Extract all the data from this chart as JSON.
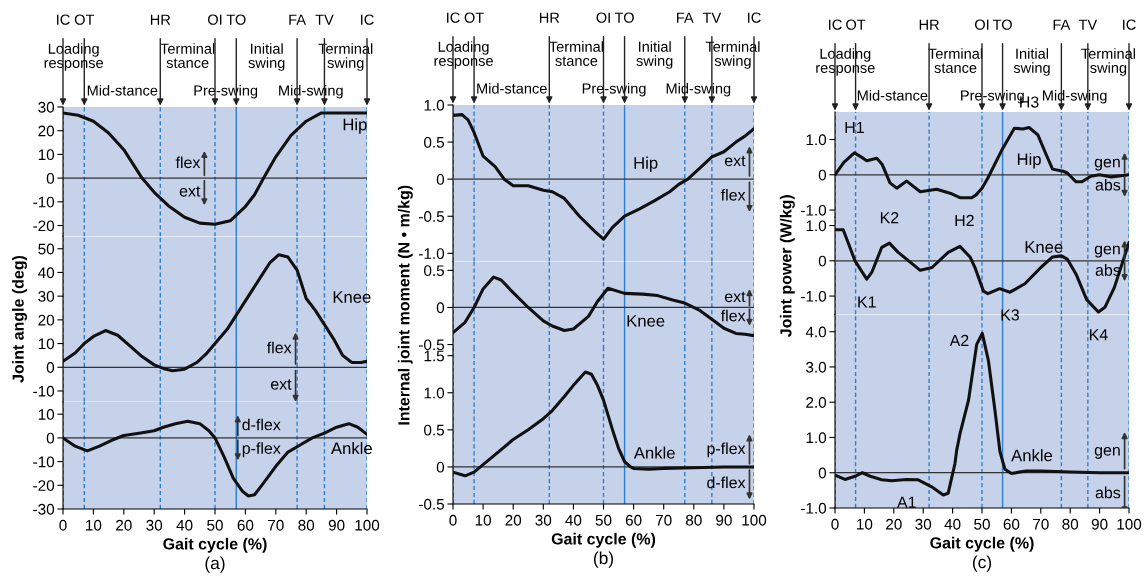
{
  "chart_data": [
    {
      "type": "line",
      "xlim": [
        0,
        100
      ],
      "ylim": [
        -24.6,
        30
      ],
      "yticks": [
        -20,
        -10,
        0,
        10,
        20,
        30
      ],
      "tick_labels": "y",
      "series": [
        {
          "name": "Hip",
          "color": "#111111",
          "x": [
            0,
            5,
            10,
            15,
            20,
            26,
            30,
            35,
            40,
            45,
            50,
            55,
            60,
            63,
            66,
            70,
            75,
            80,
            85,
            90,
            100
          ],
          "values": [
            27.5,
            26.5,
            24,
            19,
            12,
            0,
            -6,
            -12,
            -16.5,
            -19,
            -19.5,
            -18,
            -12,
            -7,
            0,
            9,
            18,
            24,
            27.5,
            27.5,
            27.5
          ]
        }
      ],
      "annotations": [
        {
          "text": "flex",
          "x": 46.5,
          "y": 0
        },
        {
          "text": "ext",
          "x": 46.5,
          "y": 0
        }
      ],
      "ref_lines": [
        {
          "axis": "x",
          "value": 0,
          "label": "IC",
          "color": "#2b7fd0",
          "line_style": "dashed"
        },
        {
          "axis": "x",
          "value": 7,
          "label": "OT",
          "color": "#2b7fd0",
          "line_style": "dashed"
        },
        {
          "axis": "x",
          "value": 32,
          "label": "HR",
          "color": "#2b7fd0",
          "line_style": "dashed"
        },
        {
          "axis": "x",
          "value": 50,
          "label": "OI",
          "color": "#2b7fd0",
          "line_style": "dashed"
        },
        {
          "axis": "x",
          "value": 57,
          "label": "TO",
          "color": "#2b7fd0",
          "line_style": "solid"
        },
        {
          "axis": "x",
          "value": 77,
          "label": "FA",
          "color": "#2b7fd0",
          "line_style": "dashed"
        },
        {
          "axis": "x",
          "value": 86,
          "label": "TV",
          "color": "#2b7fd0",
          "line_style": "dashed"
        },
        {
          "axis": "x",
          "value": 100,
          "label": "IC",
          "color": "#2b7fd0",
          "line_style": "dashed"
        },
        {
          "axis": "y",
          "value": 0,
          "color": "#333333",
          "line_style": "solid"
        }
      ],
      "bands": [
        {
          "axis": "x",
          "from": 0,
          "to": 7,
          "label": "Loading\nresponse",
          "color": "#c6d1ea"
        },
        {
          "axis": "x",
          "from": 7,
          "to": 32,
          "label": "Mid-stance",
          "color": "#c6d1ea"
        },
        {
          "axis": "x",
          "from": 32,
          "to": 50,
          "label": "Terminal\nstance",
          "color": "#c6d1ea"
        },
        {
          "axis": "x",
          "from": 50,
          "to": 57,
          "label": "Pre-swing",
          "color": "#c6d1ea"
        },
        {
          "axis": "x",
          "from": 57,
          "to": 77,
          "label": "Initial\nswing",
          "color": "#c6d1ea"
        },
        {
          "axis": "x",
          "from": 77,
          "to": 86,
          "label": "Mid-swing",
          "color": "#c6d1ea"
        },
        {
          "axis": "x",
          "from": 86,
          "to": 100,
          "label": "Terminal\nswing",
          "color": "#c6d1ea"
        }
      ]
    },
    {
      "type": "line",
      "xlim": [
        0,
        100
      ],
      "ylim": [
        -14.5,
        55.2
      ],
      "yticks": [
        -10,
        0,
        10,
        20,
        30,
        40,
        50
      ],
      "tick_labels": "y",
      "ylabel": "Joint angle (deg)",
      "series": [
        {
          "name": "Knee",
          "color": "#111111",
          "x": [
            0,
            4,
            7,
            10,
            14,
            18,
            22,
            26,
            30,
            33,
            36,
            40,
            44,
            47,
            50,
            54,
            57,
            61,
            65,
            68,
            71,
            74,
            77,
            80,
            83,
            86,
            89,
            92,
            95,
            98,
            100
          ],
          "values": [
            2.5,
            6,
            10,
            13,
            15.5,
            13.5,
            9,
            4.5,
            1,
            -0.5,
            -1.5,
            -0.8,
            2,
            5.5,
            10,
            16,
            22,
            30,
            38,
            44,
            47.5,
            46.5,
            41,
            29,
            24,
            18,
            12,
            5,
            2,
            2,
            2.5
          ]
        }
      ],
      "annotations": [
        {
          "text": "flex",
          "x": 76.5,
          "y": 0
        },
        {
          "text": "ext",
          "x": 76.5,
          "y": 0
        }
      ],
      "ref_lines": [
        {
          "axis": "x",
          "value": 0,
          "color": "#2b7fd0",
          "line_style": "dashed"
        },
        {
          "axis": "x",
          "value": 7,
          "color": "#2b7fd0",
          "line_style": "dashed"
        },
        {
          "axis": "x",
          "value": 32,
          "color": "#2b7fd0",
          "line_style": "dashed"
        },
        {
          "axis": "x",
          "value": 50,
          "color": "#2b7fd0",
          "line_style": "dashed"
        },
        {
          "axis": "x",
          "value": 57,
          "color": "#2b7fd0",
          "line_style": "solid"
        },
        {
          "axis": "x",
          "value": 77,
          "color": "#2b7fd0",
          "line_style": "dashed"
        },
        {
          "axis": "x",
          "value": 86,
          "color": "#2b7fd0",
          "line_style": "dashed"
        },
        {
          "axis": "x",
          "value": 100,
          "color": "#2b7fd0",
          "line_style": "dashed"
        },
        {
          "axis": "y",
          "value": 0,
          "color": "#333333",
          "line_style": "solid"
        }
      ],
      "bands": [
        {
          "axis": "x",
          "from": 0,
          "to": 100,
          "color": "#c6d1ea"
        }
      ]
    },
    {
      "type": "line",
      "xlim": [
        0,
        100
      ],
      "ylim": [
        -30,
        15.3
      ],
      "yticks": [
        -30,
        -20,
        -10,
        0,
        10
      ],
      "xticks": [
        0,
        10,
        20,
        30,
        40,
        50,
        60,
        70,
        80,
        90,
        100
      ],
      "xlabel": "Gait cycle (%)",
      "series": [
        {
          "name": "Ankle",
          "color": "#111111",
          "x": [
            0,
            4,
            8,
            12,
            16,
            20,
            25,
            30,
            33,
            37,
            41,
            45,
            48,
            50,
            53,
            56,
            59,
            61,
            63,
            66,
            70,
            74,
            78,
            82,
            86,
            90,
            94,
            97,
            100
          ],
          "values": [
            0,
            -3.5,
            -5.5,
            -3.5,
            -1,
            1,
            2,
            3,
            4.5,
            6,
            7,
            6,
            3,
            0,
            -8,
            -17,
            -22.5,
            -24.5,
            -24,
            -19,
            -12,
            -6,
            -3,
            0,
            2,
            4.5,
            6,
            4.5,
            1.5
          ]
        }
      ],
      "annotations": [
        {
          "text": "d-flex",
          "x": 57.5,
          "y": 0
        },
        {
          "text": "p-flex",
          "x": 57.5,
          "y": 0
        },
        "(a)"
      ],
      "ref_lines": [
        {
          "axis": "x",
          "value": 0,
          "color": "#2b7fd0",
          "line_style": "dashed"
        },
        {
          "axis": "x",
          "value": 7,
          "color": "#2b7fd0",
          "line_style": "dashed"
        },
        {
          "axis": "x",
          "value": 32,
          "color": "#2b7fd0",
          "line_style": "dashed"
        },
        {
          "axis": "x",
          "value": 50,
          "color": "#2b7fd0",
          "line_style": "dashed"
        },
        {
          "axis": "x",
          "value": 57,
          "color": "#2b7fd0",
          "line_style": "solid"
        },
        {
          "axis": "x",
          "value": 77,
          "color": "#2b7fd0",
          "line_style": "dashed"
        },
        {
          "axis": "x",
          "value": 86,
          "color": "#2b7fd0",
          "line_style": "dashed"
        },
        {
          "axis": "x",
          "value": 100,
          "color": "#2b7fd0",
          "line_style": "dashed"
        },
        {
          "axis": "y",
          "value": 0,
          "color": "#333333",
          "line_style": "solid"
        }
      ],
      "bands": [
        {
          "axis": "x",
          "from": 0,
          "to": 100,
          "color": "#c6d1ea"
        }
      ]
    },
    {
      "type": "line",
      "xlim": [
        0,
        100
      ],
      "ylim": [
        -1.11,
        1.0
      ],
      "yticks": [
        {
          "value": -1,
          "label": "-1.0"
        },
        -0.5,
        0,
        0.5,
        {
          "value": 1,
          "label": "1.0"
        }
      ],
      "tick_labels": "y",
      "series": [
        {
          "name": "Hip",
          "color": "#111111",
          "x": [
            0,
            3,
            5,
            7,
            10,
            14,
            17,
            20,
            25,
            30,
            33,
            37,
            42,
            47,
            50,
            53,
            57,
            62,
            67,
            72,
            75,
            78,
            82,
            86,
            90,
            94,
            97,
            100
          ],
          "values": [
            0.86,
            0.87,
            0.8,
            0.63,
            0.31,
            0.17,
            0,
            -0.09,
            -0.09,
            -0.15,
            -0.17,
            -0.26,
            -0.5,
            -0.7,
            -0.81,
            -0.65,
            -0.5,
            -0.4,
            -0.29,
            -0.17,
            -0.07,
            0,
            0.15,
            0.3,
            0.37,
            0.5,
            0.58,
            0.68
          ]
        }
      ],
      "annotations": [
        {
          "text": "ext",
          "x": 98.5,
          "y": 0
        },
        {
          "text": "flex",
          "x": 98.5,
          "y": 0
        }
      ],
      "ref_lines": [
        {
          "axis": "x",
          "value": 0,
          "label": "IC",
          "color": "#2b7fd0",
          "line_style": "dashed"
        },
        {
          "axis": "x",
          "value": 7,
          "label": "OT",
          "color": "#2b7fd0",
          "line_style": "dashed"
        },
        {
          "axis": "x",
          "value": 32,
          "label": "HR",
          "color": "#2b7fd0",
          "line_style": "dashed"
        },
        {
          "axis": "x",
          "value": 50,
          "label": "OI",
          "color": "#2b7fd0",
          "line_style": "dashed"
        },
        {
          "axis": "x",
          "value": 57,
          "label": "TO",
          "color": "#2b7fd0",
          "line_style": "solid"
        },
        {
          "axis": "x",
          "value": 77,
          "label": "FA",
          "color": "#2b7fd0",
          "line_style": "dashed"
        },
        {
          "axis": "x",
          "value": 86,
          "label": "TV",
          "color": "#2b7fd0",
          "line_style": "dashed"
        },
        {
          "axis": "x",
          "value": 100,
          "label": "IC",
          "color": "#2b7fd0",
          "line_style": "dashed"
        },
        {
          "axis": "y",
          "value": 0,
          "color": "#333333",
          "line_style": "solid"
        }
      ],
      "bands": [
        {
          "axis": "x",
          "from": 0,
          "to": 7,
          "label": "Loading\nresponse",
          "color": "#c6d1ea"
        },
        {
          "axis": "x",
          "from": 7,
          "to": 32,
          "label": "Mid-stance",
          "color": "#c6d1ea"
        },
        {
          "axis": "x",
          "from": 32,
          "to": 50,
          "label": "Terminal\nstance",
          "color": "#c6d1ea"
        },
        {
          "axis": "x",
          "from": 50,
          "to": 57,
          "label": "Pre-swing",
          "color": "#c6d1ea"
        },
        {
          "axis": "x",
          "from": 57,
          "to": 77,
          "label": "Initial\nswing",
          "color": "#c6d1ea"
        },
        {
          "axis": "x",
          "from": 77,
          "to": 86,
          "label": "Mid-swing",
          "color": "#c6d1ea"
        },
        {
          "axis": "x",
          "from": 86,
          "to": 100,
          "label": "Terminal\nswing",
          "color": "#c6d1ea"
        }
      ]
    },
    {
      "type": "line",
      "xlim": [
        0,
        100
      ],
      "ylim": [
        -0.56,
        0.62
      ],
      "yticks": [
        -0.5,
        0,
        0.5
      ],
      "tick_labels": "y",
      "ylabel": "Internal joint moment (N • m/kg)",
      "series": [
        {
          "name": "Knee",
          "color": "#111111",
          "x": [
            0,
            4,
            7,
            10,
            13.5,
            16,
            20,
            25,
            30,
            33,
            37,
            40,
            45,
            48,
            51.5,
            57,
            63,
            68,
            73,
            77,
            82,
            86,
            90,
            94,
            97,
            100
          ],
          "values": [
            -0.34,
            -0.2,
            0,
            0.25,
            0.41,
            0.37,
            0.2,
            0,
            -0.18,
            -0.25,
            -0.31,
            -0.29,
            -0.12,
            0.08,
            0.26,
            0.19,
            0.18,
            0.16,
            0.1,
            0.06,
            -0.04,
            -0.16,
            -0.28,
            -0.35,
            -0.36,
            -0.38
          ]
        }
      ],
      "annotations": [
        {
          "text": "ext",
          "x": 98.5,
          "y": 0
        },
        {
          "text": "flex",
          "x": 98.5,
          "y": 0
        }
      ],
      "ref_lines": [
        {
          "axis": "x",
          "value": 0,
          "color": "#2b7fd0",
          "line_style": "dashed"
        },
        {
          "axis": "x",
          "value": 7,
          "color": "#2b7fd0",
          "line_style": "dashed"
        },
        {
          "axis": "x",
          "value": 32,
          "color": "#2b7fd0",
          "line_style": "dashed"
        },
        {
          "axis": "x",
          "value": 50,
          "color": "#2b7fd0",
          "line_style": "dashed"
        },
        {
          "axis": "x",
          "value": 57,
          "color": "#2b7fd0",
          "line_style": "solid"
        },
        {
          "axis": "x",
          "value": 77,
          "color": "#2b7fd0",
          "line_style": "dashed"
        },
        {
          "axis": "x",
          "value": 86,
          "color": "#2b7fd0",
          "line_style": "dashed"
        },
        {
          "axis": "x",
          "value": 100,
          "color": "#2b7fd0",
          "line_style": "dashed"
        },
        {
          "axis": "y",
          "value": 0,
          "color": "#333333",
          "line_style": "solid"
        }
      ],
      "bands": [
        {
          "axis": "x",
          "from": 0,
          "to": 100,
          "color": "#c6d1ea"
        }
      ]
    },
    {
      "type": "line",
      "xlim": [
        0,
        100
      ],
      "ylim": [
        -0.5,
        1.59
      ],
      "yticks": [
        -0.5,
        0,
        0.5,
        {
          "value": 1,
          "label": "1.0"
        },
        1.5
      ],
      "xticks": [
        0,
        10,
        20,
        30,
        40,
        50,
        60,
        70,
        80,
        90,
        100
      ],
      "xlabel": "Gait cycle (%)",
      "series": [
        {
          "name": "Ankle",
          "color": "#111111",
          "x": [
            0,
            4,
            7,
            10,
            15,
            20,
            25,
            30,
            33,
            37,
            40,
            44,
            46,
            48,
            50,
            53,
            55,
            57,
            59,
            60,
            65,
            70,
            80,
            90,
            100
          ],
          "values": [
            -0.07,
            -0.12,
            -0.07,
            0.03,
            0.2,
            0.37,
            0.5,
            0.65,
            0.76,
            0.95,
            1.1,
            1.28,
            1.25,
            1.1,
            0.9,
            0.5,
            0.25,
            0.07,
            0,
            -0.02,
            -0.03,
            -0.02,
            -0.01,
            0,
            0
          ]
        }
      ],
      "annotations": [
        {
          "text": "p-flex",
          "x": 98.5,
          "y": 0
        },
        {
          "text": "d-flex",
          "x": 98.5,
          "y": 0
        },
        "(b)"
      ],
      "ref_lines": [
        {
          "axis": "x",
          "value": 0,
          "color": "#2b7fd0",
          "line_style": "dashed"
        },
        {
          "axis": "x",
          "value": 7,
          "color": "#2b7fd0",
          "line_style": "dashed"
        },
        {
          "axis": "x",
          "value": 32,
          "color": "#2b7fd0",
          "line_style": "dashed"
        },
        {
          "axis": "x",
          "value": 50,
          "color": "#2b7fd0",
          "line_style": "dashed"
        },
        {
          "axis": "x",
          "value": 57,
          "color": "#2b7fd0",
          "line_style": "solid"
        },
        {
          "axis": "x",
          "value": 77,
          "color": "#2b7fd0",
          "line_style": "dashed"
        },
        {
          "axis": "x",
          "value": 86,
          "color": "#2b7fd0",
          "line_style": "dashed"
        },
        {
          "axis": "x",
          "value": 100,
          "color": "#2b7fd0",
          "line_style": "dashed"
        },
        {
          "axis": "y",
          "value": 0,
          "color": "#333333",
          "line_style": "solid"
        }
      ],
      "bands": [
        {
          "axis": "x",
          "from": 0,
          "to": 100,
          "color": "#c6d1ea"
        }
      ]
    },
    {
      "type": "line",
      "xlim": [
        0,
        100
      ],
      "ylim": [
        -1.2,
        1.78
      ],
      "yticks": [
        {
          "value": -1,
          "label": "-1.0"
        },
        0,
        {
          "value": 1,
          "label": "1.0"
        }
      ],
      "tick_labels": "y",
      "series": [
        {
          "name": "Hip",
          "color": "#111111",
          "x": [
            0,
            3,
            6.6,
            9,
            10.8,
            14.2,
            16,
            18.7,
            21,
            24.4,
            29,
            34.6,
            39.7,
            42.5,
            46.5,
            48,
            50,
            52,
            57,
            61,
            64,
            66,
            69,
            72,
            74,
            77.6,
            79,
            82,
            84,
            87,
            90,
            94,
            100
          ],
          "values": [
            0,
            0.35,
            0.62,
            0.5,
            0.4,
            0.47,
            0.3,
            -0.23,
            -0.38,
            -0.18,
            -0.48,
            -0.41,
            -0.54,
            -0.65,
            -0.65,
            -0.57,
            -0.38,
            -0.09,
            0.74,
            1.32,
            1.3,
            1.34,
            1.13,
            0.54,
            0.16,
            0.1,
            0.05,
            -0.2,
            -0.2,
            -0.04,
            0,
            -0.06,
            0
          ]
        }
      ],
      "annotations": [
        {
          "text": "gen",
          "x": 98.5,
          "y": 0
        },
        {
          "text": "abs",
          "x": 98.5,
          "y": 0
        },
        {
          "text": "H1",
          "x": 6.6,
          "y": 0.62
        },
        {
          "text": "H2",
          "x": 44,
          "y": -0.65
        },
        {
          "text": "H3",
          "x": 66,
          "y": 1.34
        }
      ],
      "ref_lines": [
        {
          "axis": "x",
          "value": 0,
          "label": "IC",
          "color": "#2b7fd0",
          "line_style": "dashed"
        },
        {
          "axis": "x",
          "value": 7,
          "label": "OT",
          "color": "#2b7fd0",
          "line_style": "dashed"
        },
        {
          "axis": "x",
          "value": 32,
          "label": "HR",
          "color": "#2b7fd0",
          "line_style": "dashed"
        },
        {
          "axis": "x",
          "value": 50,
          "label": "OI",
          "color": "#2b7fd0",
          "line_style": "dashed"
        },
        {
          "axis": "x",
          "value": 57,
          "label": "TO",
          "color": "#2b7fd0",
          "line_style": "solid"
        },
        {
          "axis": "x",
          "value": 77,
          "label": "FA",
          "color": "#2b7fd0",
          "line_style": "dashed"
        },
        {
          "axis": "x",
          "value": 86,
          "label": "TV",
          "color": "#2b7fd0",
          "line_style": "dashed"
        },
        {
          "axis": "x",
          "value": 100,
          "label": "IC",
          "color": "#2b7fd0",
          "line_style": "dashed"
        },
        {
          "axis": "y",
          "value": 0,
          "color": "#333333",
          "line_style": "solid"
        }
      ],
      "bands": [
        {
          "axis": "x",
          "from": 0,
          "to": 7,
          "label": "Loading\nresponse",
          "color": "#c6d1ea"
        },
        {
          "axis": "x",
          "from": 7,
          "to": 32,
          "label": "Mid-stance",
          "color": "#c6d1ea"
        },
        {
          "axis": "x",
          "from": 32,
          "to": 50,
          "label": "Terminal\nstance",
          "color": "#c6d1ea"
        },
        {
          "axis": "x",
          "from": 50,
          "to": 57,
          "label": "Pre-swing",
          "color": "#c6d1ea"
        },
        {
          "axis": "x",
          "from": 57,
          "to": 77,
          "label": "Initial\nswing",
          "color": "#c6d1ea"
        },
        {
          "axis": "x",
          "from": 77,
          "to": 86,
          "label": "Mid-swing",
          "color": "#c6d1ea"
        },
        {
          "axis": "x",
          "from": 86,
          "to": 100,
          "label": "Terminal\nswing",
          "color": "#c6d1ea"
        }
      ]
    },
    {
      "type": "line",
      "xlim": [
        0,
        100
      ],
      "ylim": [
        -1.52,
        1.24
      ],
      "yticks": [
        {
          "value": -1,
          "label": "-1.0"
        },
        0,
        {
          "value": 1,
          "label": "1.0"
        }
      ],
      "tick_labels": "y",
      "ylabel": "Joint power (W/kg)",
      "series": [
        {
          "name": "Knee",
          "color": "#111111",
          "x": [
            0,
            2.8,
            6.8,
            10.8,
            12.5,
            15.9,
            18.5,
            21.5,
            29,
            33,
            38.5,
            42.5,
            46,
            47.6,
            50.5,
            52,
            56,
            59.5,
            64.6,
            70,
            74,
            77,
            79,
            82,
            85.6,
            89.6,
            91.8,
            95,
            100
          ],
          "values": [
            0.88,
            0.88,
            0,
            -0.52,
            -0.33,
            0.38,
            0.5,
            0.24,
            -0.27,
            -0.19,
            0.24,
            0.41,
            0.1,
            -0.19,
            -0.86,
            -0.93,
            -0.79,
            -0.89,
            -0.65,
            -0.19,
            0.11,
            0.14,
            0.05,
            -0.38,
            -1.1,
            -1.45,
            -1.32,
            -0.76,
            0.52
          ]
        }
      ],
      "annotations": [
        {
          "text": "gen",
          "x": 98.5,
          "y": 0
        },
        {
          "text": "abs",
          "x": 98.5,
          "y": 0
        },
        {
          "text": "K1",
          "x": 10.8,
          "y": -0.52
        },
        {
          "text": "K2",
          "x": 18.5,
          "y": 0.5
        },
        {
          "text": "K3",
          "x": 59.5,
          "y": -0.89
        },
        {
          "text": "K4",
          "x": 89.6,
          "y": -1.45
        }
      ],
      "ref_lines": [
        {
          "axis": "x",
          "value": 0,
          "color": "#2b7fd0",
          "line_style": "dashed"
        },
        {
          "axis": "x",
          "value": 7,
          "color": "#2b7fd0",
          "line_style": "dashed"
        },
        {
          "axis": "x",
          "value": 32,
          "color": "#2b7fd0",
          "line_style": "dashed"
        },
        {
          "axis": "x",
          "value": 50,
          "color": "#2b7fd0",
          "line_style": "dashed"
        },
        {
          "axis": "x",
          "value": 57,
          "color": "#2b7fd0",
          "line_style": "solid"
        },
        {
          "axis": "x",
          "value": 77,
          "color": "#2b7fd0",
          "line_style": "dashed"
        },
        {
          "axis": "x",
          "value": 86,
          "color": "#2b7fd0",
          "line_style": "dashed"
        },
        {
          "axis": "x",
          "value": 100,
          "color": "#2b7fd0",
          "line_style": "dashed"
        },
        {
          "axis": "y",
          "value": 0,
          "color": "#333333",
          "line_style": "solid"
        }
      ],
      "bands": [
        {
          "axis": "x",
          "from": 0,
          "to": 100,
          "color": "#c6d1ea"
        }
      ]
    },
    {
      "type": "line",
      "xlim": [
        0,
        100
      ],
      "ylim": [
        -1.0,
        4.49
      ],
      "yticks": [
        {
          "value": -1,
          "label": "-1.0"
        },
        0,
        {
          "value": 1,
          "label": "1.0"
        },
        {
          "value": 2,
          "label": "2.0"
        },
        {
          "value": 3,
          "label": "3.0"
        },
        {
          "value": 4,
          "label": "4.0"
        }
      ],
      "xticks": [
        0,
        10,
        20,
        30,
        40,
        50,
        60,
        70,
        80,
        90,
        100
      ],
      "xlabel": "Gait cycle (%)",
      "series": [
        {
          "name": "Ankle",
          "color": "#111111",
          "x": [
            0,
            3.4,
            6.8,
            9.3,
            12,
            15.9,
            19.3,
            24.4,
            28.3,
            32.9,
            36.8,
            38.5,
            40.8,
            41.4,
            42.5,
            45.4,
            48.2,
            50.1,
            52.2,
            54.4,
            56.1,
            57.8,
            60,
            65,
            70,
            80,
            90,
            100
          ],
          "values": [
            -0.07,
            -0.19,
            -0.1,
            0,
            -0.1,
            -0.2,
            -0.23,
            -0.19,
            -0.2,
            -0.4,
            -0.63,
            -0.58,
            0.26,
            0.64,
            1.1,
            2.05,
            3.64,
            3.95,
            3.17,
            1.77,
            0.6,
            0.1,
            -0.02,
            0.05,
            0.05,
            0.02,
            0,
            0
          ]
        }
      ],
      "annotations": [
        {
          "text": "gen",
          "x": 98.5,
          "y": 0
        },
        {
          "text": "abs",
          "x": 98.5,
          "y": 0
        },
        "(c)",
        {
          "text": "A1",
          "x": 24.4,
          "y": -0.19
        },
        {
          "text": "A2",
          "x": 48,
          "y": 3.95
        }
      ],
      "ref_lines": [
        {
          "axis": "x",
          "value": 0,
          "color": "#2b7fd0",
          "line_style": "dashed"
        },
        {
          "axis": "x",
          "value": 7,
          "color": "#2b7fd0",
          "line_style": "dashed"
        },
        {
          "axis": "x",
          "value": 32,
          "color": "#2b7fd0",
          "line_style": "dashed"
        },
        {
          "axis": "x",
          "value": 50,
          "color": "#2b7fd0",
          "line_style": "dashed"
        },
        {
          "axis": "x",
          "value": 57,
          "color": "#2b7fd0",
          "line_style": "solid"
        },
        {
          "axis": "x",
          "value": 77,
          "color": "#2b7fd0",
          "line_style": "dashed"
        },
        {
          "axis": "x",
          "value": 86,
          "color": "#2b7fd0",
          "line_style": "dashed"
        },
        {
          "axis": "x",
          "value": 100,
          "color": "#2b7fd0",
          "line_style": "dashed"
        },
        {
          "axis": "y",
          "value": 0,
          "color": "#333333",
          "line_style": "solid"
        }
      ],
      "bands": [
        {
          "axis": "x",
          "from": 0,
          "to": 100,
          "color": "#c6d1ea"
        }
      ]
    }
  ]
}
